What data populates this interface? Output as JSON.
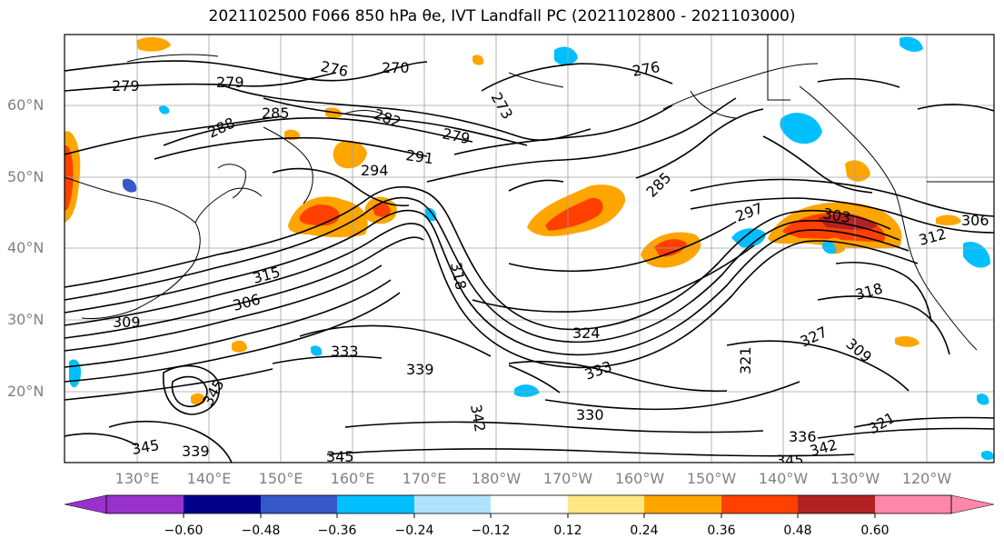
{
  "title": "2021102500 F066 850 hPa θe, IVT Landfall PC (2021102800 - 2021103000)",
  "lat_labels": [
    "60°N",
    "50°N",
    "40°N",
    "30°N",
    "20°N"
  ],
  "lon_labels": [
    "130°E",
    "140°E",
    "150°E",
    "160°E",
    "170°E",
    "180°W",
    "170°W",
    "160°W",
    "150°W",
    "140°W",
    "130°W",
    "120°W"
  ],
  "contour_labels": [
    "279",
    "279",
    "276",
    "270",
    "273",
    "276",
    "288",
    "285",
    "282",
    "279",
    "291",
    "294",
    "285",
    "297",
    "303",
    "306",
    "312",
    "318",
    "315",
    "306",
    "309",
    "318",
    "324",
    "327",
    "333",
    "339",
    "345",
    "342",
    "345",
    "339",
    "345",
    "330",
    "333",
    "336",
    "342",
    "345",
    "321",
    "309",
    "321"
  ],
  "colorbar": {
    "ticks": [
      "−0.60",
      "−0.48",
      "−0.36",
      "−0.24",
      "−0.12",
      "0.12",
      "0.24",
      "0.36",
      "0.48",
      "0.60"
    ],
    "colors": [
      "#9932cc",
      "#00008b",
      "#3658c8",
      "#00bfff",
      "#b0e2ff",
      "#ffffff",
      "#ffe884",
      "#ffa500",
      "#ff4000",
      "#b22222",
      "#ff88aa"
    ]
  }
}
